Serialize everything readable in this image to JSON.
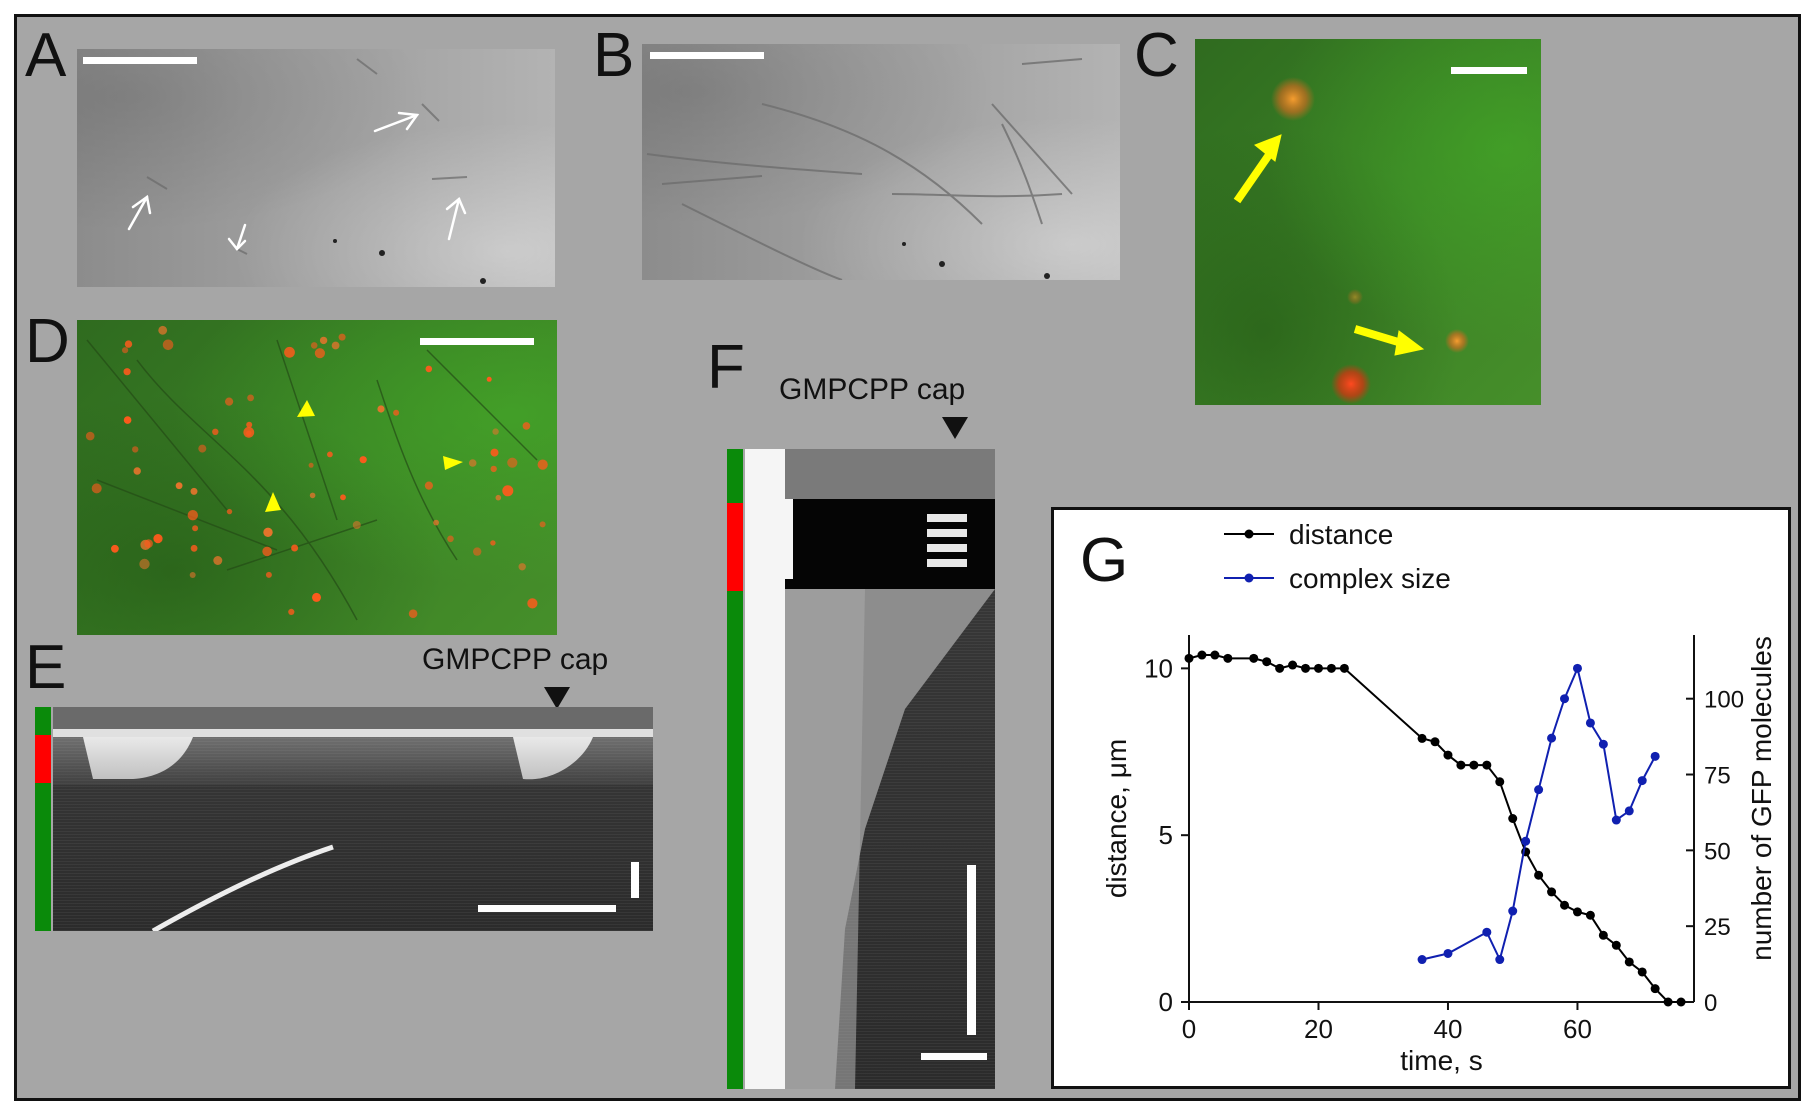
{
  "figure": {
    "panels": {
      "a": {
        "label": "A"
      },
      "b": {
        "label": "B"
      },
      "c": {
        "label": "C"
      },
      "d": {
        "label": "D"
      },
      "e": {
        "label": "E",
        "annotation": "GMPCPP cap"
      },
      "f": {
        "label": "F",
        "annotation": "GMPCPP cap"
      },
      "g": {
        "label": "G"
      }
    },
    "colors": {
      "background": "#a6a6a6",
      "arrow_yellow": "#ffff00",
      "bar_green": "#0a8a0a",
      "bar_red": "#ff0000",
      "series_distance": "#000000",
      "series_complex": "#1020b0"
    },
    "icons": [
      "white-arrow-icon",
      "yellow-arrow-icon",
      "yellow-arrowhead-icon",
      "black-triangle-icon"
    ]
  },
  "chart_data": {
    "type": "line",
    "xlabel": "time, s",
    "ylabel": "distance, μm",
    "ylabel_right": "number of GFP molecules",
    "xlim": [
      0,
      78
    ],
    "ylim": [
      0,
      11
    ],
    "ylim_right": [
      0,
      121
    ],
    "xticks": [
      "0",
      "20",
      "40",
      "60"
    ],
    "yticks": [
      "0",
      "5",
      "10"
    ],
    "yticks_right": [
      "0",
      "25",
      "50",
      "75",
      "100"
    ],
    "legend_position": "top-left",
    "series": [
      {
        "name": "distance",
        "axis": "left",
        "x": [
          0,
          2,
          4,
          6,
          10,
          12,
          14,
          16,
          18,
          20,
          22,
          24,
          36,
          38,
          40,
          42,
          44,
          46,
          48,
          50,
          52,
          54,
          56,
          58,
          60,
          62,
          64,
          66,
          68,
          70,
          72,
          74,
          76
        ],
        "y": [
          10.3,
          10.4,
          10.4,
          10.3,
          10.3,
          10.2,
          10.0,
          10.1,
          10.0,
          10.0,
          10.0,
          10.0,
          7.9,
          7.8,
          7.4,
          7.1,
          7.1,
          7.1,
          6.6,
          5.5,
          4.5,
          3.8,
          3.3,
          2.9,
          2.7,
          2.6,
          2.0,
          1.7,
          1.2,
          0.9,
          0.4,
          0.0,
          0.0
        ]
      },
      {
        "name": "complex size",
        "axis": "right",
        "x": [
          36,
          40,
          46,
          48,
          50,
          52,
          54,
          56,
          58,
          60,
          62,
          64,
          66,
          68,
          70,
          72
        ],
        "y": [
          14,
          16,
          23,
          14,
          30,
          53,
          70,
          87,
          100,
          110,
          92,
          85,
          60,
          63,
          73,
          81
        ]
      }
    ]
  }
}
